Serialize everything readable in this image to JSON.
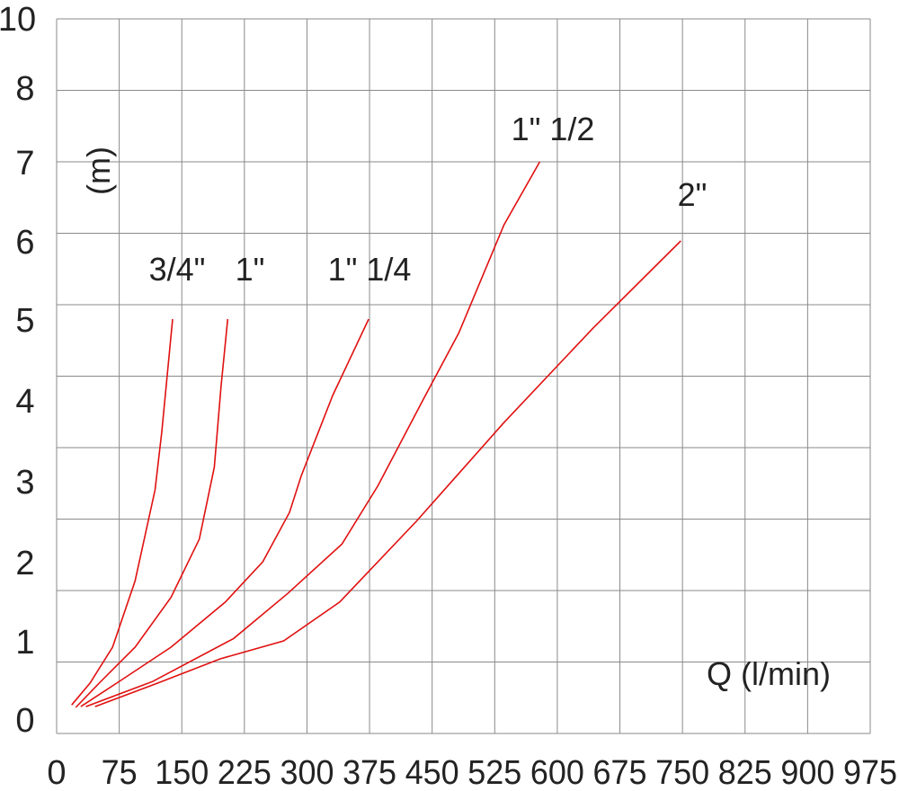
{
  "chart_data": {
    "type": "line",
    "title": "",
    "xlabel": "Q (l/min)",
    "ylabel": "(m)",
    "xlim": [
      0,
      975
    ],
    "ylim": [
      0,
      10
    ],
    "grid": true,
    "x_ticks": [
      "0",
      "75",
      "150",
      "225",
      "300",
      "375",
      "450",
      "525",
      "600",
      "675",
      "750",
      "825",
      "900",
      "975"
    ],
    "y_ticks": [
      "10",
      "8",
      "7",
      "6",
      "5",
      "4",
      "3",
      "2",
      "1",
      "0"
    ],
    "line_color": "#e01010",
    "series": [
      {
        "name": "3/4\"",
        "points": [
          [
            18,
            0.18
          ],
          [
            40,
            0.46
          ],
          [
            67,
            0.92
          ],
          [
            94,
            1.76
          ],
          [
            118,
            2.89
          ],
          [
            126,
            3.61
          ],
          [
            139,
            5
          ]
        ]
      },
      {
        "name": "1\"",
        "points": [
          [
            23,
            0.15
          ],
          [
            51,
            0.46
          ],
          [
            94,
            0.92
          ],
          [
            137,
            1.55
          ],
          [
            171,
            2.28
          ],
          [
            189,
            3.17
          ],
          [
            197,
            4.17
          ],
          [
            205,
            5
          ]
        ]
      },
      {
        "name": "1\" 1/4",
        "points": [
          [
            29,
            0.16
          ],
          [
            72,
            0.46
          ],
          [
            137,
            0.92
          ],
          [
            202,
            1.49
          ],
          [
            247,
            2.0
          ],
          [
            279,
            2.61
          ],
          [
            293,
            3.06
          ],
          [
            331,
            4.06
          ],
          [
            374,
            5
          ]
        ]
      },
      {
        "name": "1\" 1/2",
        "points": [
          [
            35,
            0.16
          ],
          [
            115,
            0.48
          ],
          [
            212,
            1.03
          ],
          [
            277,
            1.6
          ],
          [
            342,
            2.22
          ],
          [
            385,
            2.94
          ],
          [
            439,
            4.0
          ],
          [
            482,
            4.83
          ],
          [
            536,
            6.2
          ],
          [
            579,
            7
          ]
        ]
      },
      {
        "name": "2\"",
        "points": [
          [
            46,
            0.16
          ],
          [
            121,
            0.46
          ],
          [
            196,
            0.77
          ],
          [
            272,
            1.0
          ],
          [
            339,
            1.49
          ],
          [
            431,
            2.5
          ],
          [
            536,
            3.72
          ],
          [
            643,
            4.89
          ],
          [
            748,
            6
          ]
        ]
      }
    ]
  }
}
